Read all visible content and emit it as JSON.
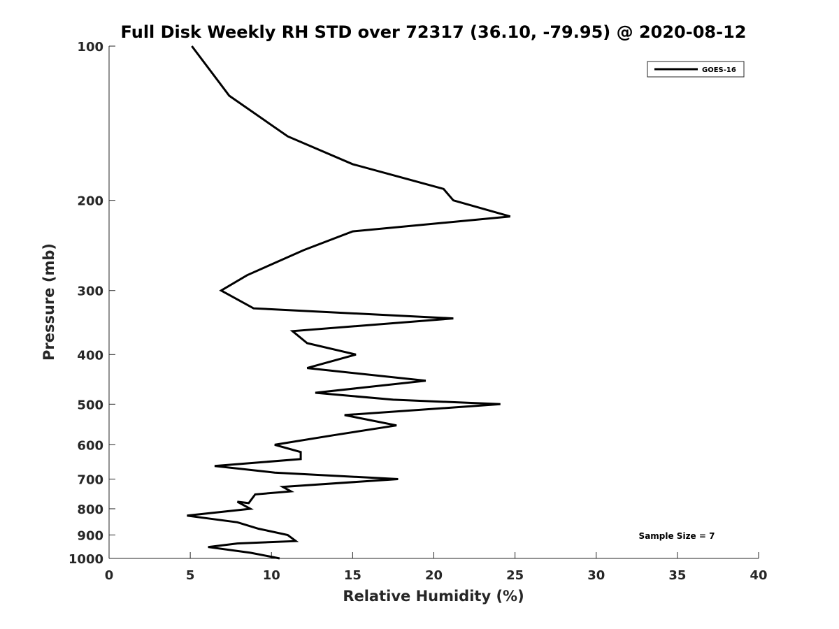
{
  "chart_data": {
    "type": "line",
    "title": "Full Disk Weekly RH STD over 72317 (36.10, -79.95) @ 2020-08-12",
    "xlabel": "Relative Humidity (%)",
    "ylabel": "Pressure (mb)",
    "xlim": [
      0,
      40
    ],
    "ylim": [
      100,
      1000
    ],
    "y_scale": "log",
    "y_reversed": true,
    "x_ticks": [
      0,
      5,
      10,
      15,
      20,
      25,
      30,
      35,
      40
    ],
    "y_ticks": [
      100,
      200,
      300,
      400,
      500,
      600,
      700,
      800,
      900,
      1000
    ],
    "grid": false,
    "legend_position": "top-right",
    "annotation": "Sample Size = 7",
    "series": [
      {
        "name": "GOES-16",
        "color": "#000000",
        "points": [
          [
            5.1,
            100
          ],
          [
            7.4,
            125
          ],
          [
            11.0,
            150
          ],
          [
            15.0,
            170
          ],
          [
            20.6,
            190
          ],
          [
            21.2,
            200
          ],
          [
            24.7,
            215
          ],
          [
            15.0,
            230
          ],
          [
            12.0,
            250
          ],
          [
            8.5,
            280
          ],
          [
            6.9,
            300
          ],
          [
            8.9,
            325
          ],
          [
            21.2,
            340
          ],
          [
            11.3,
            360
          ],
          [
            12.2,
            380
          ],
          [
            15.2,
            400
          ],
          [
            12.2,
            425
          ],
          [
            19.5,
            450
          ],
          [
            12.7,
            475
          ],
          [
            17.5,
            490
          ],
          [
            24.1,
            500
          ],
          [
            14.5,
            525
          ],
          [
            17.7,
            550
          ],
          [
            13.8,
            575
          ],
          [
            10.2,
            600
          ],
          [
            11.8,
            620
          ],
          [
            11.8,
            640
          ],
          [
            6.5,
            660
          ],
          [
            10.2,
            680
          ],
          [
            17.8,
            700
          ],
          [
            10.7,
            725
          ],
          [
            11.2,
            740
          ],
          [
            9.0,
            750
          ],
          [
            8.6,
            780
          ],
          [
            7.9,
            775
          ],
          [
            8.7,
            800
          ],
          [
            4.8,
            825
          ],
          [
            7.9,
            850
          ],
          [
            9.2,
            875
          ],
          [
            11.0,
            900
          ],
          [
            11.5,
            925
          ],
          [
            7.9,
            935
          ],
          [
            6.1,
            950
          ],
          [
            8.7,
            975
          ],
          [
            10.5,
            1000
          ]
        ]
      }
    ]
  }
}
